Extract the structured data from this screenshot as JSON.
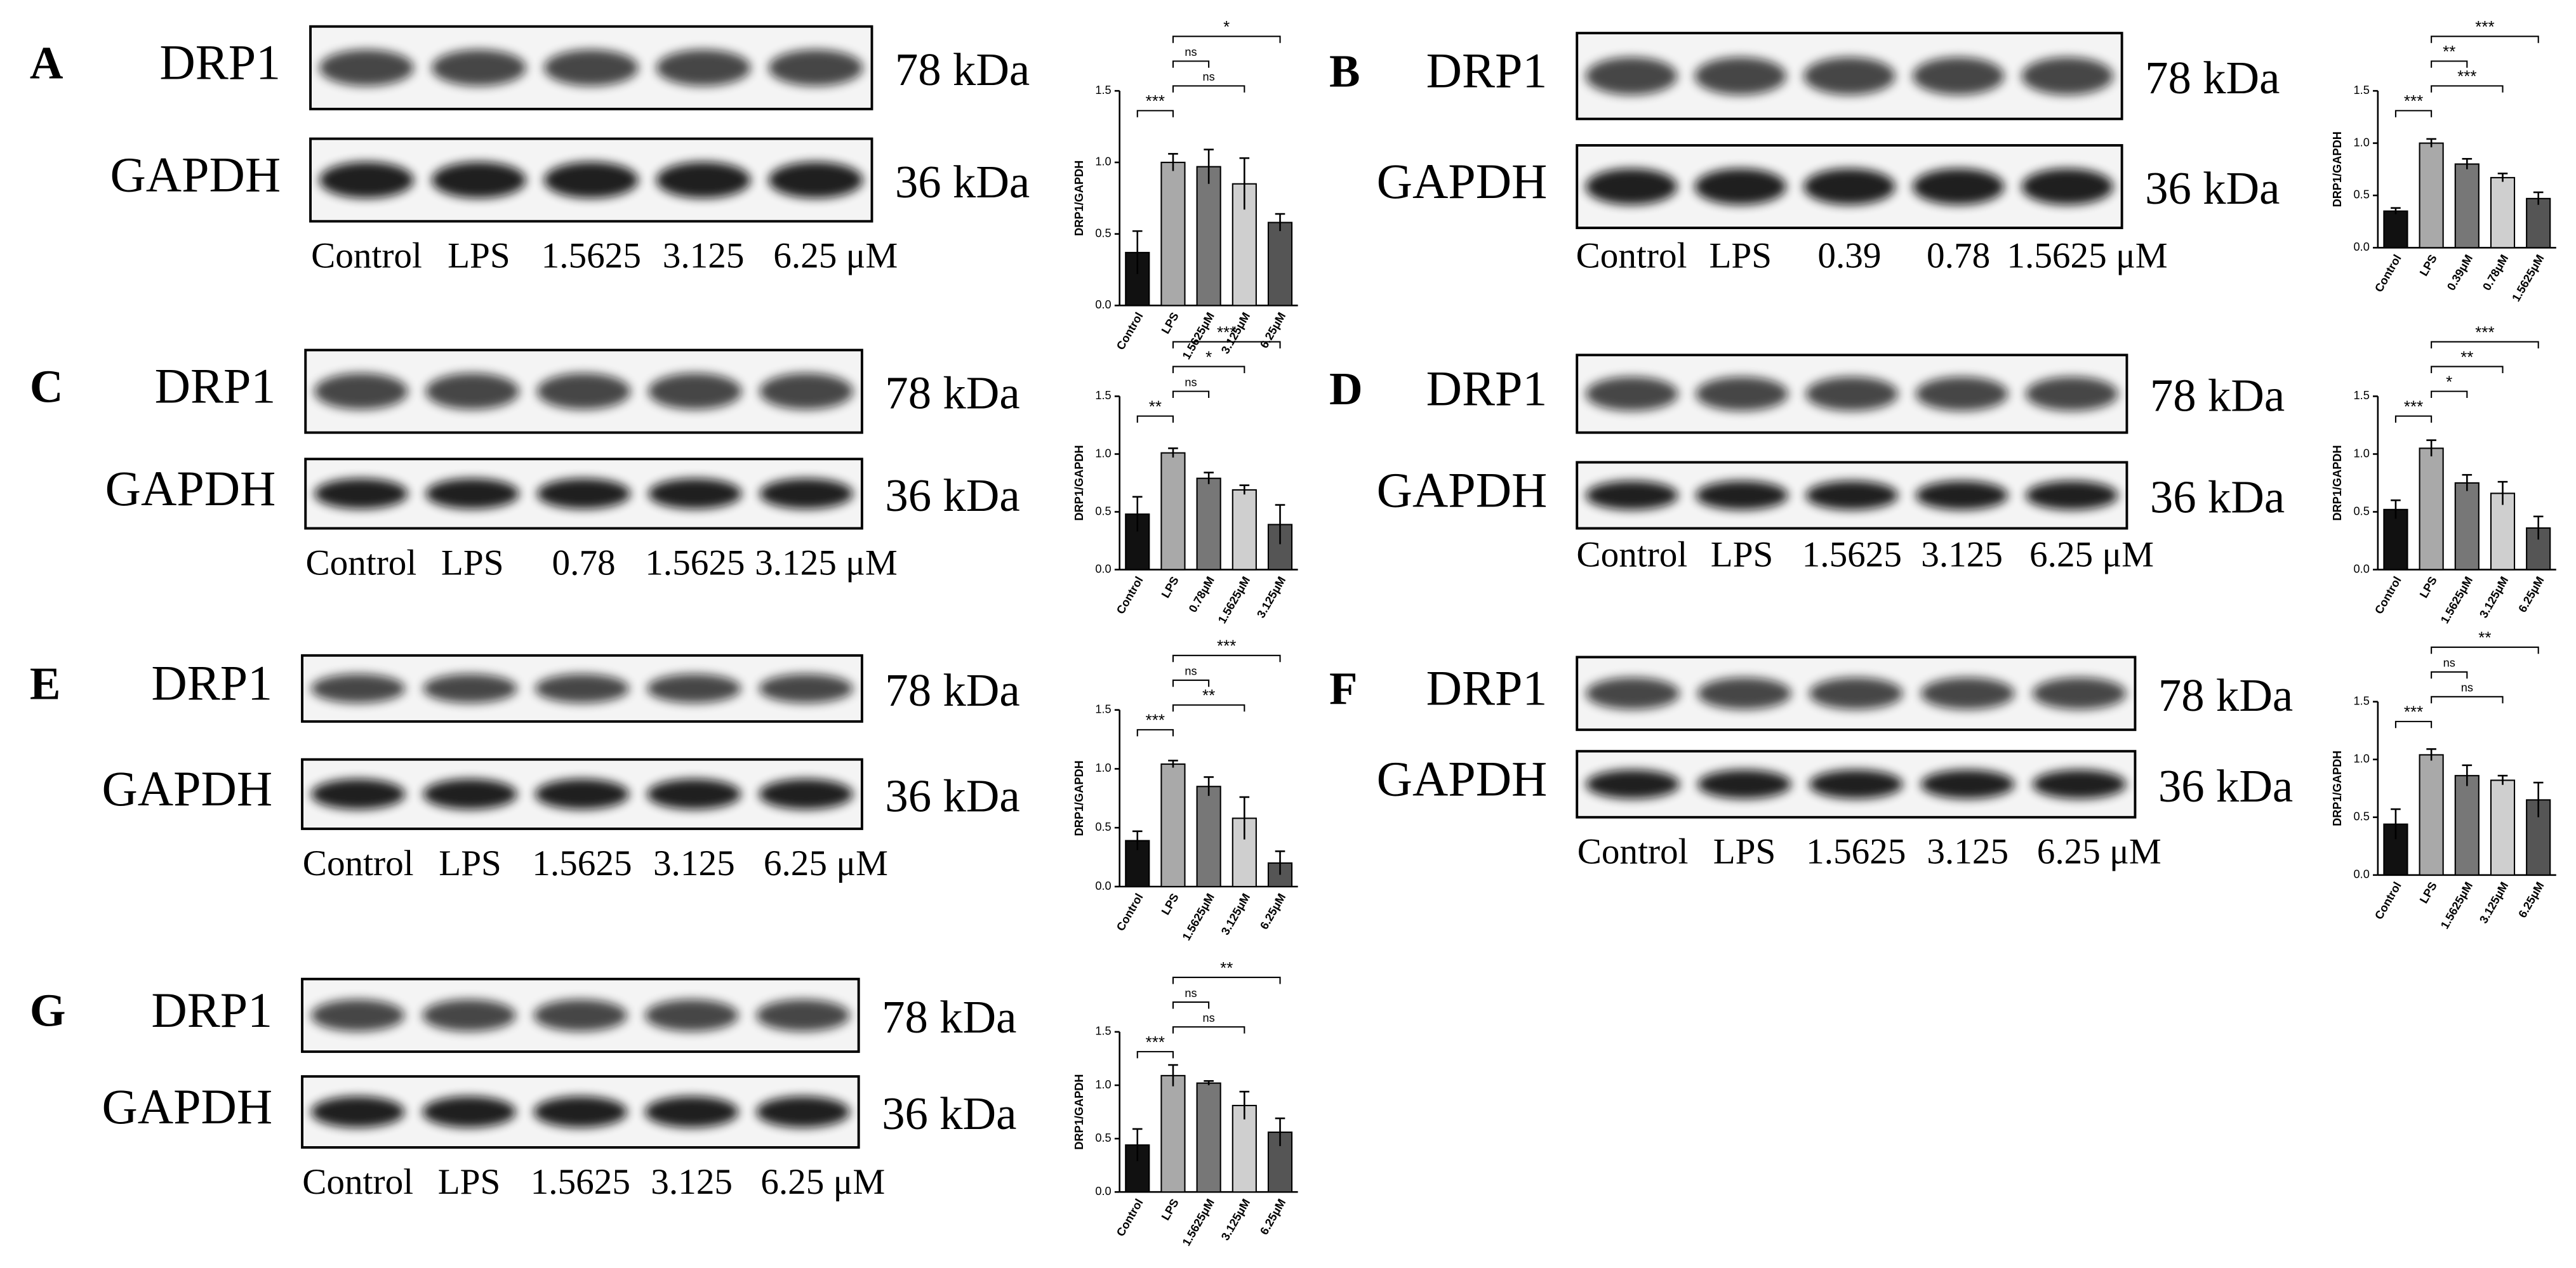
{
  "chart_data": [
    {
      "type": "bar",
      "panel": "A",
      "blot_rows": [
        {
          "protein": "DRP1",
          "size": "78 kDa"
        },
        {
          "protein": "GAPDH",
          "size": "36 kDa"
        }
      ],
      "lanes": [
        "Control",
        "LPS",
        "1.5625",
        "3.125",
        "6.25 μM"
      ],
      "ylabel": "DRP1/GAPDH",
      "categories": [
        "Control",
        "LPS",
        "1.5625μM",
        "3.125μM",
        "6.25μM"
      ],
      "values": [
        0.37,
        1.0,
        0.97,
        0.85,
        0.58
      ],
      "errors": [
        0.15,
        0.06,
        0.12,
        0.18,
        0.06
      ],
      "colors": [
        "#111111",
        "#a9a9a9",
        "#777777",
        "#cfcfcf",
        "#555555"
      ],
      "ylim": [
        0,
        1.5
      ],
      "yticks": [
        {
          "value": 0,
          "label": "0.0"
        },
        0.5,
        {
          "value": 1,
          "label": "1.0"
        },
        1.5
      ],
      "comparisons": [
        {
          "label": "***",
          "pair": [
            0,
            1
          ]
        },
        {
          "label": "ns",
          "pair": [
            1,
            3
          ]
        },
        {
          "label": "ns",
          "pair": [
            1,
            2
          ]
        },
        {
          "label": "*",
          "pair": [
            1,
            4
          ]
        }
      ]
    },
    {
      "type": "bar",
      "panel": "B",
      "blot_rows": [
        {
          "protein": "DRP1",
          "size": "78 kDa"
        },
        {
          "protein": "GAPDH",
          "size": "36 kDa"
        }
      ],
      "lanes": [
        "Control",
        "LPS",
        "0.39",
        "0.78",
        "1.5625 μM"
      ],
      "ylabel": "DRP1/GAPDH",
      "categories": [
        "Control",
        "LPS",
        "0.39μM",
        "0.78μM",
        "1.5625μM"
      ],
      "values": [
        0.35,
        1.0,
        0.8,
        0.67,
        0.47
      ],
      "errors": [
        0.03,
        0.04,
        0.05,
        0.04,
        0.06
      ],
      "colors": [
        "#111111",
        "#a9a9a9",
        "#777777",
        "#cfcfcf",
        "#555555"
      ],
      "ylim": [
        0,
        1.5
      ],
      "yticks": [
        {
          "value": 0,
          "label": "0.0"
        },
        0.5,
        {
          "value": 1,
          "label": "1.0"
        },
        1.5
      ],
      "comparisons": [
        {
          "label": "***",
          "pair": [
            0,
            1
          ]
        },
        {
          "label": "***",
          "pair": [
            1,
            3
          ]
        },
        {
          "label": "**",
          "pair": [
            1,
            2
          ]
        },
        {
          "label": "***",
          "pair": [
            1,
            4
          ]
        }
      ]
    },
    {
      "type": "bar",
      "panel": "C",
      "blot_rows": [
        {
          "protein": "DRP1",
          "size": "78 kDa"
        },
        {
          "protein": "GAPDH",
          "size": "36 kDa"
        }
      ],
      "lanes": [
        "Control",
        "LPS",
        "0.78",
        "1.5625",
        "3.125 μM"
      ],
      "ylabel": "DRP1/GAPDH",
      "categories": [
        "Control",
        "LPS",
        "0.78μM",
        "1.5625μM",
        "3.125μM"
      ],
      "values": [
        0.48,
        1.01,
        0.79,
        0.69,
        0.39
      ],
      "errors": [
        0.15,
        0.04,
        0.05,
        0.04,
        0.17
      ],
      "colors": [
        "#111111",
        "#a9a9a9",
        "#777777",
        "#cfcfcf",
        "#555555"
      ],
      "ylim": [
        0,
        1.5
      ],
      "yticks": [
        {
          "value": 0,
          "label": "0.0"
        },
        0.5,
        {
          "value": 1,
          "label": "1.0"
        },
        1.5
      ],
      "comparisons": [
        {
          "label": "**",
          "pair": [
            0,
            1
          ]
        },
        {
          "label": "ns",
          "pair": [
            1,
            2
          ]
        },
        {
          "label": "*",
          "pair": [
            1,
            3
          ]
        },
        {
          "label": "***",
          "pair": [
            1,
            4
          ]
        }
      ]
    },
    {
      "type": "bar",
      "panel": "D",
      "blot_rows": [
        {
          "protein": "DRP1",
          "size": "78 kDa"
        },
        {
          "protein": "GAPDH",
          "size": "36 kDa"
        }
      ],
      "lanes": [
        "Control",
        "LPS",
        "1.5625",
        "3.125",
        "6.25 μM"
      ],
      "ylabel": "DRP1/GAPDH",
      "categories": [
        "Control",
        "LPS",
        "1.5625μM",
        "3.125μM",
        "6.25μM"
      ],
      "values": [
        0.52,
        1.05,
        0.75,
        0.66,
        0.36
      ],
      "errors": [
        0.08,
        0.07,
        0.07,
        0.1,
        0.1
      ],
      "colors": [
        "#111111",
        "#a9a9a9",
        "#777777",
        "#cfcfcf",
        "#555555"
      ],
      "ylim": [
        0,
        1.5
      ],
      "yticks": [
        {
          "value": 0,
          "label": "0.0"
        },
        0.5,
        {
          "value": 1,
          "label": "1.0"
        },
        1.5
      ],
      "comparisons": [
        {
          "label": "***",
          "pair": [
            0,
            1
          ]
        },
        {
          "label": "*",
          "pair": [
            1,
            2
          ]
        },
        {
          "label": "**",
          "pair": [
            1,
            3
          ]
        },
        {
          "label": "***",
          "pair": [
            1,
            4
          ]
        }
      ]
    },
    {
      "type": "bar",
      "panel": "E",
      "blot_rows": [
        {
          "protein": "DRP1",
          "size": "78 kDa"
        },
        {
          "protein": "GAPDH",
          "size": "36 kDa"
        }
      ],
      "lanes": [
        "Control",
        "LPS",
        "1.5625",
        "3.125",
        "6.25 μM"
      ],
      "ylabel": "DRP1/GAPDH",
      "categories": [
        "Control",
        "LPS",
        "1.5625μM",
        "3.125μM",
        "6.25μM"
      ],
      "values": [
        0.39,
        1.04,
        0.85,
        0.58,
        0.2
      ],
      "errors": [
        0.08,
        0.03,
        0.08,
        0.18,
        0.1
      ],
      "colors": [
        "#111111",
        "#a9a9a9",
        "#777777",
        "#cfcfcf",
        "#555555"
      ],
      "ylim": [
        0,
        1.5
      ],
      "yticks": [
        {
          "value": 0,
          "label": "0.0"
        },
        0.5,
        {
          "value": 1,
          "label": "1.0"
        },
        1.5
      ],
      "comparisons": [
        {
          "label": "***",
          "pair": [
            0,
            1
          ]
        },
        {
          "label": "**",
          "pair": [
            1,
            3
          ]
        },
        {
          "label": "ns",
          "pair": [
            1,
            2
          ]
        },
        {
          "label": "***",
          "pair": [
            1,
            4
          ]
        }
      ]
    },
    {
      "type": "bar",
      "panel": "F",
      "blot_rows": [
        {
          "protein": "DRP1",
          "size": "78 kDa"
        },
        {
          "protein": "GAPDH",
          "size": "36 kDa"
        }
      ],
      "lanes": [
        "Control",
        "LPS",
        "1.5625",
        "3.125",
        "6.25 μM"
      ],
      "ylabel": "DRP1/GAPDH",
      "categories": [
        "Control",
        "LPS",
        "1.5625μM",
        "3.125μM",
        "6.25μM"
      ],
      "values": [
        0.44,
        1.04,
        0.86,
        0.82,
        0.65
      ],
      "errors": [
        0.13,
        0.05,
        0.09,
        0.04,
        0.15
      ],
      "colors": [
        "#111111",
        "#a9a9a9",
        "#777777",
        "#cfcfcf",
        "#555555"
      ],
      "ylim": [
        0,
        1.5
      ],
      "yticks": [
        {
          "value": 0,
          "label": "0.0"
        },
        0.5,
        {
          "value": 1,
          "label": "1.0"
        },
        1.5
      ],
      "comparisons": [
        {
          "label": "***",
          "pair": [
            0,
            1
          ]
        },
        {
          "label": "ns",
          "pair": [
            1,
            3
          ]
        },
        {
          "label": "ns",
          "pair": [
            1,
            2
          ]
        },
        {
          "label": "**",
          "pair": [
            1,
            4
          ]
        }
      ]
    },
    {
      "type": "bar",
      "panel": "G",
      "blot_rows": [
        {
          "protein": "DRP1",
          "size": "78 kDa"
        },
        {
          "protein": "GAPDH",
          "size": "36 kDa"
        }
      ],
      "lanes": [
        "Control",
        "LPS",
        "1.5625",
        "3.125",
        "6.25 μM"
      ],
      "ylabel": "DRP1/GAPDH",
      "categories": [
        "Control",
        "LPS",
        "1.5625μM",
        "3.125μM",
        "6.25μM"
      ],
      "values": [
        0.44,
        1.09,
        1.02,
        0.81,
        0.56
      ],
      "errors": [
        0.15,
        0.1,
        0.02,
        0.13,
        0.13
      ],
      "colors": [
        "#111111",
        "#a9a9a9",
        "#777777",
        "#cfcfcf",
        "#555555"
      ],
      "ylim": [
        0,
        1.5
      ],
      "yticks": [
        {
          "value": 0,
          "label": "0.0"
        },
        0.5,
        {
          "value": 1,
          "label": "1.0"
        },
        1.5
      ],
      "comparisons": [
        {
          "label": "***",
          "pair": [
            0,
            1
          ]
        },
        {
          "label": "ns",
          "pair": [
            1,
            3
          ]
        },
        {
          "label": "ns",
          "pair": [
            1,
            2
          ]
        },
        {
          "label": "**",
          "pair": [
            1,
            4
          ]
        }
      ]
    }
  ]
}
